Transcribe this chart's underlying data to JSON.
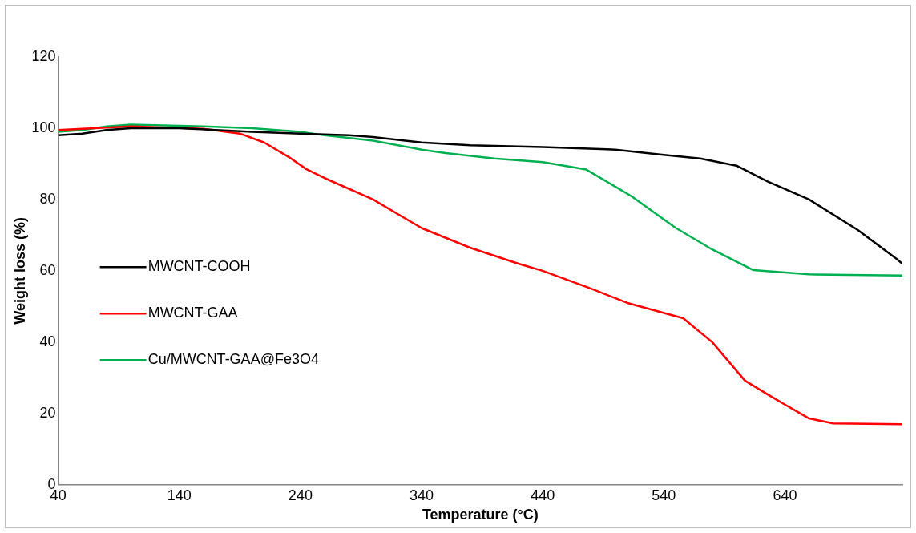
{
  "chart_data": {
    "type": "line",
    "xlabel": "Temperature (°C)",
    "ylabel": "Weight loss (%)",
    "xlim": [
      40,
      737
    ],
    "xticks": [
      40,
      140,
      240,
      340,
      440,
      540,
      640
    ],
    "ylim": [
      0,
      120
    ],
    "yticks": [
      0,
      20,
      40,
      60,
      80,
      100,
      120
    ],
    "grid": false,
    "legend": "left",
    "marker": "none",
    "line_style": "solid",
    "series": [
      {
        "name": "MWCNT-COOH",
        "color": "#000000",
        "x": [
          40,
          60,
          80,
          100,
          140,
          200,
          240,
          280,
          300,
          340,
          380,
          440,
          500,
          540,
          570,
          600,
          626,
          660,
          700,
          732,
          737
        ],
        "values": [
          98,
          98.5,
          99.5,
          100,
          100,
          99,
          98.5,
          98,
          97.5,
          96,
          95.2,
          94.7,
          94,
          92.5,
          91.5,
          89.5,
          85,
          80,
          71.5,
          63.4,
          62
        ]
      },
      {
        "name": "MWCNT-GAA",
        "color": "#ff0000",
        "x": [
          40,
          100,
          160,
          190,
          210,
          230,
          245,
          260,
          300,
          340,
          380,
          420,
          440,
          480,
          510,
          556,
          580,
          607,
          625,
          640,
          660,
          680,
          737
        ],
        "values": [
          99.5,
          100.5,
          99.8,
          98.5,
          96,
          92,
          88.5,
          86,
          80,
          72,
          66.5,
          62,
          60,
          55,
          51,
          46.7,
          40,
          29.2,
          25.5,
          22.5,
          18.6,
          17.2,
          17
        ]
      },
      {
        "name": "Cu/MWCNT-GAA@Fe3O4",
        "color": "#00b050",
        "x": [
          40,
          60,
          80,
          100,
          160,
          200,
          240,
          260,
          300,
          340,
          360,
          400,
          440,
          476,
          513,
          550,
          580,
          614,
          660,
          737
        ],
        "values": [
          99,
          99.5,
          100.5,
          101,
          100.5,
          100,
          99,
          98,
          96.5,
          94,
          93,
          91.5,
          90.5,
          88.4,
          81,
          72,
          66,
          60.2,
          59,
          58.7
        ]
      }
    ]
  }
}
